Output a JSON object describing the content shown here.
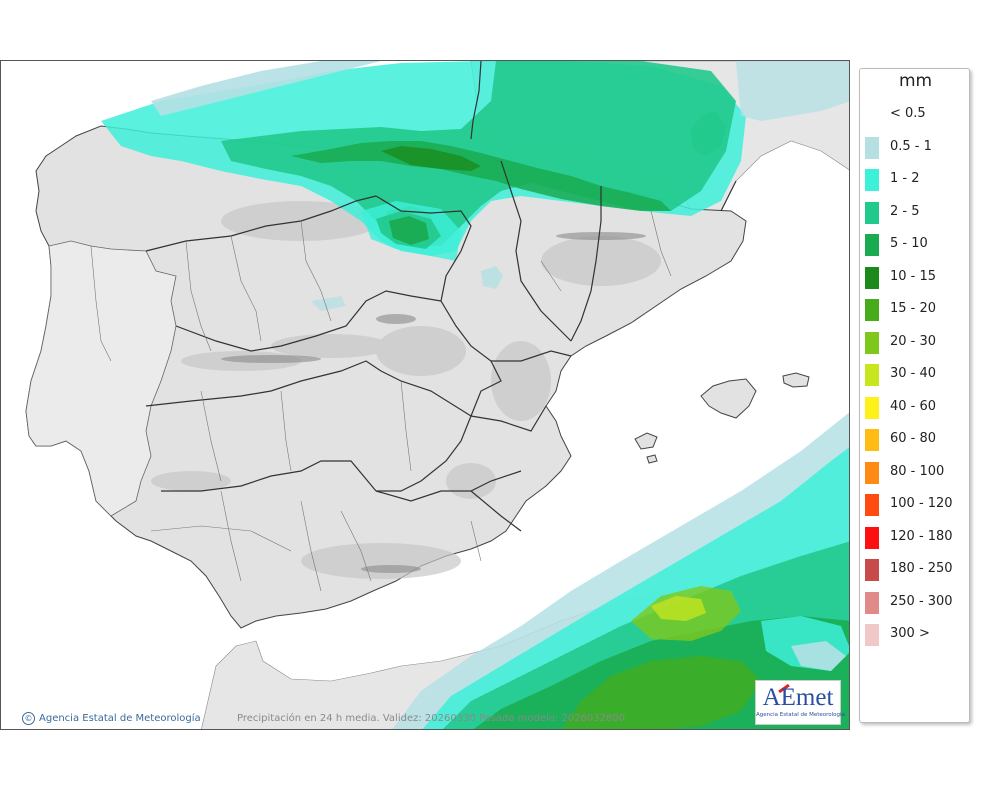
{
  "map": {
    "legend_title": "mm",
    "legend": [
      {
        "label": "< 0.5",
        "color": "#ffffff"
      },
      {
        "label": "0.5 - 1",
        "color": "#b4e0e4"
      },
      {
        "label": "1 - 2",
        "color": "#3df0d8"
      },
      {
        "label": "2 - 5",
        "color": "#22c98c"
      },
      {
        "label": "5 - 10",
        "color": "#1aaa50"
      },
      {
        "label": "10 - 15",
        "color": "#1b8a1a"
      },
      {
        "label": "15 - 20",
        "color": "#46ac1c"
      },
      {
        "label": "20 - 30",
        "color": "#7ec81e"
      },
      {
        "label": "30 - 40",
        "color": "#c8e61e"
      },
      {
        "label": "40 - 60",
        "color": "#fff21a"
      },
      {
        "label": "60 - 80",
        "color": "#ffbc14"
      },
      {
        "label": "80 - 100",
        "color": "#ff8a14"
      },
      {
        "label": "100 - 120",
        "color": "#ff4a12"
      },
      {
        "label": "120 - 180",
        "color": "#ff1010"
      },
      {
        "label": "180 - 250",
        "color": "#c84a4a"
      },
      {
        "label": "250 - 300",
        "color": "#e08a8a"
      },
      {
        "label": "300 >",
        "color": "#f0c8c8"
      }
    ],
    "agency_credit": "Agencia Estatal de Meteorología",
    "copyright_symbol": "©",
    "caption": "Precipitación en 24 h media. Validez: 20260330 Pasada modelo: 2026032800",
    "logo_text": "AEmet",
    "logo_subtitle": "Agencia Estatal de Meteorología",
    "colors": {
      "land": "#e2e2e2",
      "sea": "#ffffff",
      "border": "#333333"
    }
  }
}
